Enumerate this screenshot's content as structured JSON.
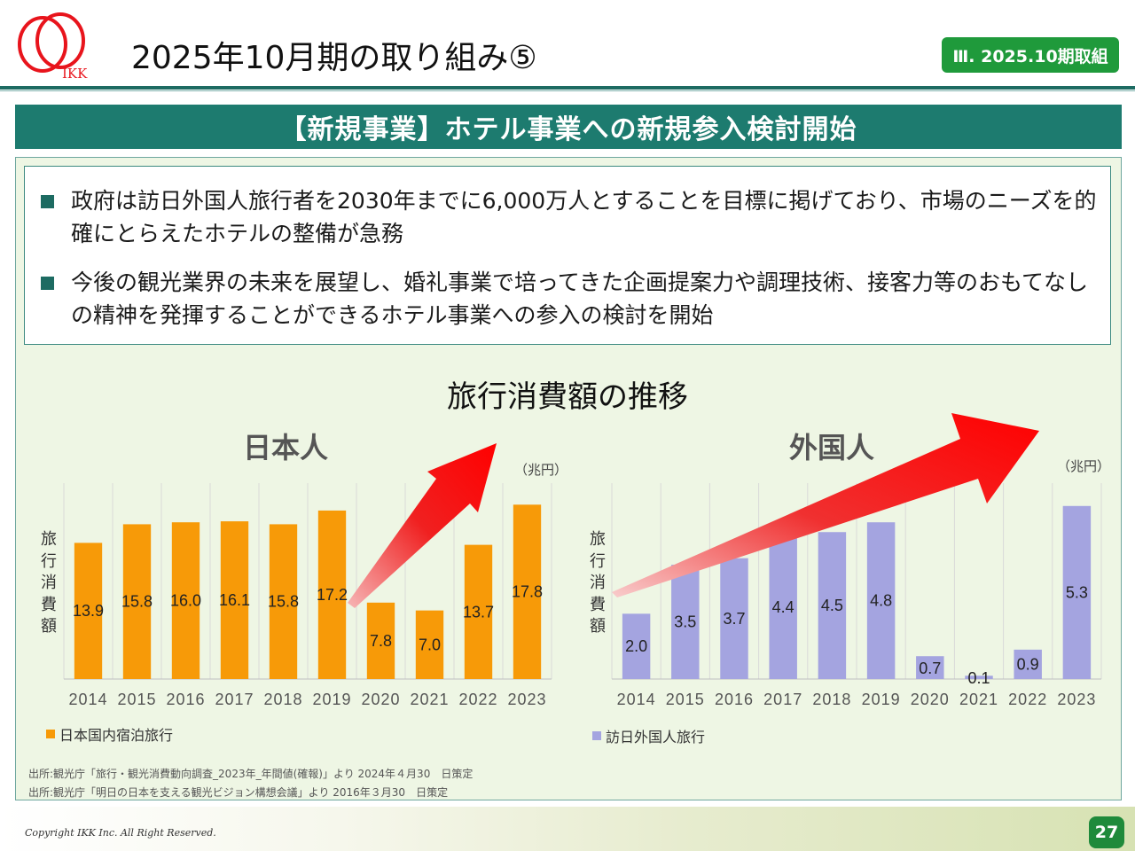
{
  "brand": {
    "logo_text": "IKK",
    "color": "#e8141c"
  },
  "header": {
    "title": "2025年10月期の取り組み⑤",
    "section_badge": "Ⅲ. 2025.10期取組"
  },
  "banner": {
    "text": "【新規事業】ホテル事業への新規参入検討開始"
  },
  "bullets": [
    "政府は訪日外国人旅行者を2030年までに6,000万人とすることを目標に掲げており、市場のニーズを的確にとらえたホテルの整備が急務",
    "今後の観光業界の未来を展望し、婚礼事業で培ってきた企画提案力や調理技術、接客力等のおもてなしの精神を発揮することができるホテル事業への参入の検討を開始"
  ],
  "charts_title": "旅行消費額の推移",
  "chart_data": [
    {
      "type": "bar",
      "title": "日本人",
      "unit": "（兆円）",
      "ylabel": "旅行消費額",
      "categories": [
        "2014",
        "2015",
        "2016",
        "2017",
        "2018",
        "2019",
        "2020",
        "2021",
        "2022",
        "2023"
      ],
      "series": [
        {
          "name": "日本国内宿泊旅行",
          "color": "#f79a08",
          "values": [
            13.9,
            15.8,
            16.0,
            16.1,
            15.8,
            17.2,
            7.8,
            7.0,
            13.7,
            17.8
          ]
        }
      ],
      "ylim": [
        0,
        20
      ],
      "grid": "vertical",
      "legend": "bottom-left",
      "trend_arrow": "red"
    },
    {
      "type": "bar",
      "title": "外国人",
      "unit": "（兆円）",
      "ylabel": "旅行消費額",
      "categories": [
        "2014",
        "2015",
        "2016",
        "2017",
        "2018",
        "2019",
        "2020",
        "2021",
        "2022",
        "2023"
      ],
      "series": [
        {
          "name": "訪日外国人旅行",
          "color": "#a4a4e0",
          "values": [
            2.0,
            3.5,
            3.7,
            4.4,
            4.5,
            4.8,
            0.7,
            0.1,
            0.9,
            5.3
          ]
        }
      ],
      "ylim": [
        0,
        6
      ],
      "grid": "vertical",
      "legend": "bottom-left",
      "trend_arrow": "red"
    }
  ],
  "sources": [
    "出所:観光庁「旅行・観光消費動向調査_2023年_年間値(確報)」より 2024年４月30　日策定",
    "出所:観光庁「明日の日本を支える観光ビジョン構想会議」より 2016年３月30　日策定"
  ],
  "footer": {
    "copyright": "Copyright IKK Inc. All Right Reserved.",
    "page_number": "27"
  }
}
